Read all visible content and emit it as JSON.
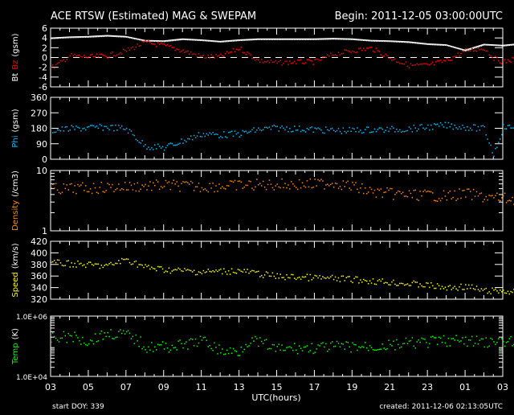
{
  "header": {
    "title": "ACE RTSW (Estimated) MAG & SWEPAM",
    "begin": "Begin: 2011-12-05 03:00:00UTC"
  },
  "footer": {
    "start_doy": "start DOY: 339",
    "created": "created: 2011-12-06 02:13:05UTC"
  },
  "chart_data": [
    {
      "type": "line",
      "name": "mag",
      "ylabel_parts": [
        "Bt",
        "Bz",
        "(gsm)"
      ],
      "ylim": [
        -6,
        6
      ],
      "yticks": [
        "6",
        "4",
        "2",
        "0",
        "-2",
        "-4",
        "-6"
      ],
      "zero_line": true,
      "series": [
        {
          "name": "Bt",
          "color": "#ffffff",
          "x": [
            0,
            1,
            2,
            3,
            4,
            5,
            6,
            7,
            8,
            9,
            10,
            11,
            12,
            13,
            14,
            15,
            16,
            17,
            18,
            19,
            20,
            21,
            22,
            23,
            24,
            24.8
          ],
          "y": [
            4.0,
            4.2,
            4.3,
            4.5,
            4.3,
            3.5,
            3.4,
            3.8,
            3.6,
            3.3,
            3.6,
            3.8,
            3.8,
            3.8,
            3.8,
            3.9,
            3.8,
            3.5,
            3.4,
            3.2,
            2.8,
            2.6,
            1.5,
            2.7,
            2.5,
            2.8
          ]
        },
        {
          "name": "Bz",
          "color": "#ff0000",
          "x": [
            0,
            0.5,
            1,
            2,
            3,
            4,
            5,
            6,
            7,
            8,
            9,
            10,
            11,
            12,
            13,
            14,
            15,
            16,
            17,
            18,
            19,
            20,
            21,
            22,
            23,
            23.5,
            24,
            24.8
          ],
          "y": [
            -2,
            -1,
            0.5,
            0.2,
            0.5,
            1.5,
            3.2,
            2.5,
            1.5,
            0.3,
            0.3,
            2,
            -0.5,
            -1,
            -0.8,
            -0.8,
            0.8,
            1.5,
            2,
            0,
            -1.5,
            -1.5,
            -0.5,
            1.5,
            2,
            0,
            -0.8,
            0
          ]
        }
      ]
    },
    {
      "type": "scatter",
      "name": "phi",
      "ylabel_parts": [
        "Phi",
        "(gsm)"
      ],
      "ylim": [
        0,
        360
      ],
      "yticks": [
        "360",
        "270",
        "180",
        "90",
        "0"
      ],
      "series": [
        {
          "name": "Phi",
          "color": "#00bfff",
          "x": [
            0,
            1,
            2,
            3,
            4,
            5,
            6,
            7,
            8,
            9,
            10,
            11,
            12,
            13,
            14,
            15,
            16,
            17,
            18,
            19,
            20,
            21,
            22,
            23,
            23.5,
            24,
            24.8
          ],
          "y": [
            170,
            180,
            185,
            190,
            180,
            80,
            70,
            110,
            150,
            145,
            150,
            175,
            185,
            180,
            175,
            170,
            170,
            175,
            175,
            180,
            190,
            200,
            190,
            180,
            30,
            190,
            185
          ]
        }
      ]
    },
    {
      "type": "scatter",
      "name": "density",
      "scale": "log",
      "ylabel_parts": [
        "Density",
        "(/cm3)"
      ],
      "ylim": [
        1,
        10
      ],
      "yticks": [
        "10",
        "1"
      ],
      "series": [
        {
          "name": "Density",
          "color": "#ff8c00",
          "x": [
            0,
            2,
            4,
            6,
            8,
            10,
            12,
            14,
            15,
            16,
            17,
            18,
            19,
            20,
            21,
            22,
            23,
            24,
            24.8
          ],
          "y": [
            5,
            5.2,
            5.5,
            5.8,
            5.5,
            5.8,
            6,
            6,
            6.5,
            5.5,
            4.5,
            4.2,
            4,
            4,
            3.8,
            4.2,
            3.7,
            3.5,
            3.4
          ]
        }
      ]
    },
    {
      "type": "scatter",
      "name": "speed",
      "ylabel_parts": [
        "Speed",
        "(km/s)"
      ],
      "ylim": [
        320,
        420
      ],
      "yticks": [
        "420",
        "400",
        "380",
        "360",
        "340",
        "320"
      ],
      "series": [
        {
          "name": "Speed",
          "color": "#ffff00",
          "x": [
            0,
            2,
            3,
            4,
            5,
            6,
            8,
            10,
            12,
            14,
            16,
            18,
            20,
            21,
            22,
            23,
            24,
            24.8
          ],
          "y": [
            384,
            380,
            378,
            390,
            376,
            372,
            368,
            370,
            360,
            358,
            355,
            350,
            345,
            340,
            343,
            335,
            335,
            333
          ]
        }
      ]
    },
    {
      "type": "scatter",
      "name": "temp",
      "scale": "log",
      "ylabel_parts": [
        "Temp",
        "(K)"
      ],
      "ylim": [
        10000,
        1000000
      ],
      "yticks": [
        "1.0E+06",
        "1.0E+04"
      ],
      "series": [
        {
          "name": "Temp",
          "color": "#00ff00",
          "x": [
            0,
            1,
            2,
            3,
            4,
            5,
            6,
            7,
            8,
            9,
            10,
            10.5,
            11,
            12,
            13,
            14,
            15,
            16,
            17,
            18,
            19,
            20,
            21,
            22,
            23,
            24,
            24.8
          ],
          "y": [
            190000,
            220000,
            150000,
            280000,
            250000,
            100000,
            100000,
            110000,
            160000,
            70000,
            70000,
            160000,
            140000,
            80000,
            90000,
            90000,
            100000,
            100000,
            100000,
            110000,
            130000,
            140000,
            160000,
            150000,
            150000,
            120000,
            170000
          ]
        }
      ]
    }
  ],
  "xaxis": {
    "label": "UTC(hours)",
    "ticks": [
      "03",
      "05",
      "07",
      "09",
      "11",
      "13",
      "15",
      "17",
      "19",
      "21",
      "23",
      "01",
      "03"
    ],
    "range_hours": [
      0,
      24
    ]
  }
}
